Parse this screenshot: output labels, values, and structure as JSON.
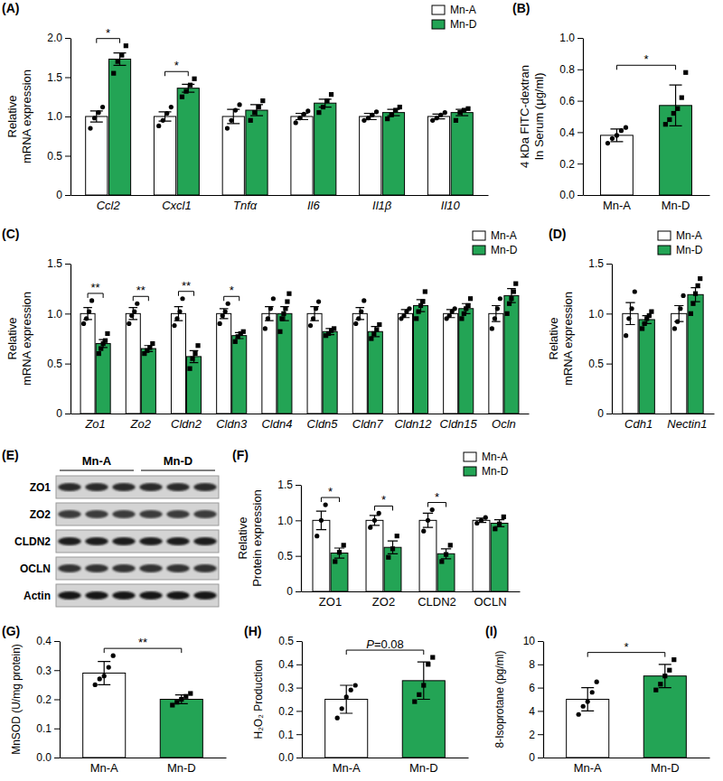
{
  "chart_data": [
    {
      "type": "bar",
      "label": "(A)",
      "ylabel": [
        "Relative",
        "mRNA expression"
      ],
      "categories": [
        "Ccl2",
        "Cxcl1",
        "Tnfα",
        "Il6",
        "Il1β",
        "Il10"
      ],
      "series": [
        {
          "name": "Mn-A",
          "color": "#ffffff",
          "values": [
            1.0,
            1.0,
            1.0,
            1.0,
            1.0,
            1.0
          ],
          "errors": [
            0.07,
            0.06,
            0.09,
            0.04,
            0.04,
            0.03
          ],
          "points": [
            [
              0.85,
              0.98,
              1.05,
              1.12
            ],
            [
              0.88,
              0.95,
              1.04,
              1.12
            ],
            [
              0.85,
              0.95,
              1.08,
              1.15
            ],
            [
              0.92,
              0.98,
              1.03,
              1.07
            ],
            [
              0.95,
              0.98,
              1.02,
              1.06
            ],
            [
              0.95,
              0.98,
              1.02,
              1.05
            ]
          ]
        },
        {
          "name": "Mn-D",
          "color": "#23a455",
          "values": [
            1.73,
            1.36,
            1.08,
            1.17,
            1.05,
            1.05
          ],
          "errors": [
            0.08,
            0.05,
            0.07,
            0.05,
            0.04,
            0.04
          ],
          "points": [
            [
              1.55,
              1.7,
              1.78,
              1.9
            ],
            [
              1.25,
              1.32,
              1.4,
              1.48
            ],
            [
              0.95,
              1.05,
              1.12,
              1.2
            ],
            [
              1.05,
              1.12,
              1.2,
              1.28
            ],
            [
              0.97,
              1.02,
              1.08,
              1.12
            ],
            [
              0.95,
              1.05,
              1.08,
              1.1
            ]
          ]
        }
      ],
      "significance": [
        "*",
        "*",
        null,
        null,
        null,
        null
      ],
      "ylim": [
        0,
        2
      ],
      "yticks": [
        0,
        0.5,
        {
          "value": 1,
          "label": "1.0"
        },
        1.5,
        {
          "value": 2,
          "label": "2.0"
        }
      ],
      "legend": "top-right"
    },
    {
      "type": "bar",
      "label": "(B)",
      "ylabel": [
        "4 kDa FITC-dextran",
        "In Serum (μg/ml)"
      ],
      "categories": [
        "Mn-A",
        "Mn-D"
      ],
      "values": [
        0.38,
        0.57
      ],
      "errors": [
        0.04,
        0.13
      ],
      "colors": [
        "#ffffff",
        "#23a455"
      ],
      "points": [
        [
          0.33,
          0.36,
          0.38,
          0.41,
          0.43
        ],
        [
          0.45,
          0.48,
          0.52,
          0.55,
          0.62,
          0.78
        ]
      ],
      "significance": "*",
      "ylim": [
        0,
        1
      ],
      "yticks": [
        {
          "value": 0,
          "label": "0.0"
        },
        0.2,
        0.4,
        0.6,
        0.8,
        {
          "value": 1,
          "label": "1.0"
        }
      ]
    },
    {
      "type": "bar",
      "label": "(C)",
      "ylabel": [
        "Relative",
        "mRNA expression"
      ],
      "categories": [
        "Zo1",
        "Zo2",
        "Cldn2",
        "Cldn3",
        "Cldn4",
        "Cldn5",
        "Cldn7",
        "Cldn12",
        "Cldn15",
        "Ocln"
      ],
      "series": [
        {
          "name": "Mn-A",
          "color": "#ffffff",
          "values": [
            1.0,
            1.0,
            1.0,
            1.0,
            1.0,
            1.0,
            1.0,
            1.0,
            1.0,
            1.0
          ],
          "errors": [
            0.06,
            0.06,
            0.07,
            0.05,
            0.07,
            0.07,
            0.06,
            0.04,
            0.04,
            0.08
          ],
          "points": [
            [
              0.9,
              0.95,
              1.02,
              1.13
            ],
            [
              0.9,
              0.98,
              1.02,
              1.1
            ],
            [
              0.88,
              0.95,
              1.02,
              1.15
            ],
            [
              0.9,
              0.98,
              1.02,
              1.1
            ],
            [
              0.85,
              0.95,
              1.05,
              1.15
            ],
            [
              0.88,
              0.95,
              1.05,
              1.12
            ],
            [
              0.9,
              0.95,
              1.02,
              1.13
            ],
            [
              0.95,
              0.98,
              1.02,
              1.05
            ],
            [
              0.95,
              0.98,
              1.02,
              1.05
            ],
            [
              0.85,
              0.95,
              1.05,
              1.15
            ]
          ]
        },
        {
          "name": "Mn-D",
          "color": "#23a455",
          "values": [
            0.7,
            0.65,
            0.57,
            0.78,
            1.0,
            0.82,
            0.82,
            1.08,
            1.05,
            1.18
          ],
          "errors": [
            0.04,
            0.03,
            0.06,
            0.03,
            0.07,
            0.03,
            0.05,
            0.06,
            0.05,
            0.07
          ],
          "points": [
            [
              0.6,
              0.65,
              0.7,
              0.73,
              0.8
            ],
            [
              0.6,
              0.63,
              0.66,
              0.7
            ],
            [
              0.45,
              0.55,
              0.6,
              0.68
            ],
            [
              0.72,
              0.77,
              0.8,
              0.82
            ],
            [
              0.82,
              0.95,
              1.0,
              1.05,
              1.12,
              1.2
            ],
            [
              0.78,
              0.8,
              0.83,
              0.85
            ],
            [
              0.75,
              0.8,
              0.84,
              0.89
            ],
            [
              0.95,
              1.02,
              1.08,
              1.12,
              1.22
            ],
            [
              0.95,
              1.0,
              1.05,
              1.08,
              1.15
            ],
            [
              1.0,
              1.1,
              1.15,
              1.22,
              1.3
            ]
          ]
        }
      ],
      "significance": [
        "**",
        "**",
        "**",
        "*",
        null,
        null,
        null,
        null,
        null,
        null
      ],
      "ylim": [
        0,
        1.5
      ],
      "yticks": [
        0,
        0.5,
        {
          "value": 1,
          "label": "1.0"
        },
        1.5
      ],
      "legend": "top-right"
    },
    {
      "type": "bar",
      "label": "(D)",
      "ylabel": [
        "Relative",
        "mRNA expression"
      ],
      "categories": [
        "Cdh1",
        "Nectin1"
      ],
      "series": [
        {
          "name": "Mn-A",
          "color": "#ffffff",
          "values": [
            1.0,
            1.0
          ],
          "errors": [
            0.11,
            0.08
          ],
          "points": [
            [
              0.78,
              0.95,
              1.05,
              1.22
            ],
            [
              0.85,
              0.92,
              1.05,
              1.18
            ]
          ]
        },
        {
          "name": "Mn-D",
          "color": "#23a455",
          "values": [
            0.94,
            1.19
          ],
          "errors": [
            0.04,
            0.07
          ],
          "points": [
            [
              0.85,
              0.9,
              0.95,
              0.98,
              1.02
            ],
            [
              1.0,
              1.1,
              1.2,
              1.28,
              1.35
            ]
          ]
        }
      ],
      "ylim": [
        0,
        1.5
      ],
      "yticks": [
        0,
        0.5,
        {
          "value": 1,
          "label": "1.0"
        },
        1.5
      ],
      "legend": "top-right"
    },
    {
      "type": "bar",
      "label": "(F)",
      "ylabel": [
        "Relative",
        "Protein expression"
      ],
      "categories": [
        "ZO1",
        "ZO2",
        "CLDN2",
        "OCLN"
      ],
      "series": [
        {
          "name": "Mn-A",
          "color": "#ffffff",
          "values": [
            1.0,
            1.0,
            1.0,
            1.0
          ],
          "errors": [
            0.13,
            0.07,
            0.1,
            0.03
          ],
          "points": [
            [
              0.78,
              1.0,
              1.22
            ],
            [
              0.9,
              1.0,
              1.1
            ],
            [
              0.85,
              1.0,
              1.15
            ],
            [
              0.96,
              1.0,
              1.04
            ]
          ]
        },
        {
          "name": "Mn-D",
          "color": "#23a455",
          "values": [
            0.54,
            0.62,
            0.53,
            0.96
          ],
          "errors": [
            0.07,
            0.09,
            0.07,
            0.05
          ],
          "points": [
            [
              0.42,
              0.55,
              0.65
            ],
            [
              0.48,
              0.6,
              0.78
            ],
            [
              0.42,
              0.52,
              0.65
            ],
            [
              0.88,
              0.95,
              1.05
            ]
          ]
        }
      ],
      "significance": [
        "*",
        "*",
        "*",
        null
      ],
      "ylim": [
        0,
        1.5
      ],
      "yticks": [
        0,
        0.5,
        {
          "value": 1,
          "label": "1.0"
        },
        1.5
      ],
      "legend": "top-right"
    },
    {
      "type": "bar",
      "label": "(G)",
      "ylabel": [
        "MnSOD (U/mg protein)"
      ],
      "categories": [
        "Mn-A",
        "Mn-D"
      ],
      "values": [
        0.29,
        0.2
      ],
      "errors": [
        0.04,
        0.015
      ],
      "colors": [
        "#ffffff",
        "#23a455"
      ],
      "points": [
        [
          0.25,
          0.27,
          0.28,
          0.31,
          0.35
        ],
        [
          0.18,
          0.19,
          0.2,
          0.21,
          0.22
        ]
      ],
      "significance": "**",
      "ylim": [
        0,
        0.4
      ],
      "yticks": [
        {
          "value": 0,
          "label": "0.0"
        },
        0.1,
        0.2,
        0.3,
        0.4
      ]
    },
    {
      "type": "bar",
      "label": "(H)",
      "ylabel": [
        "H₂O₂ Production"
      ],
      "categories": [
        "Mn-A",
        "Mn-D"
      ],
      "values": [
        0.25,
        0.33
      ],
      "errors": [
        0.06,
        0.08
      ],
      "colors": [
        "#ffffff",
        "#23a455"
      ],
      "points": [
        [
          0.17,
          0.21,
          0.26,
          0.29,
          0.31
        ],
        [
          0.24,
          0.27,
          0.31,
          0.4,
          0.43
        ]
      ],
      "significance": "P=0.08",
      "ylim": [
        0,
        0.5
      ],
      "yticks": [
        {
          "value": 0,
          "label": "0.0"
        },
        0.1,
        0.2,
        0.3,
        0.4,
        0.5
      ]
    },
    {
      "type": "bar",
      "label": "(I)",
      "ylabel": [
        "8-Isoprotane (pg/ml)"
      ],
      "categories": [
        "Mn-A",
        "Mn-D"
      ],
      "values": [
        5.0,
        7.0
      ],
      "errors": [
        1.0,
        1.0
      ],
      "colors": [
        "#ffffff",
        "#23a455"
      ],
      "points": [
        [
          3.7,
          4.4,
          4.8,
          5.6,
          6.5
        ],
        [
          5.8,
          6.3,
          7.0,
          7.5,
          8.4
        ]
      ],
      "significance": "*",
      "ylim": [
        0,
        10
      ],
      "yticks": [
        0,
        2,
        4,
        6,
        8,
        10
      ]
    }
  ],
  "blot": {
    "label": "(E)",
    "lanes": [
      "Mn-A",
      "Mn-D"
    ],
    "rows": [
      "ZO1",
      "ZO2",
      "CLDN2",
      "OCLN",
      "Actin"
    ]
  }
}
